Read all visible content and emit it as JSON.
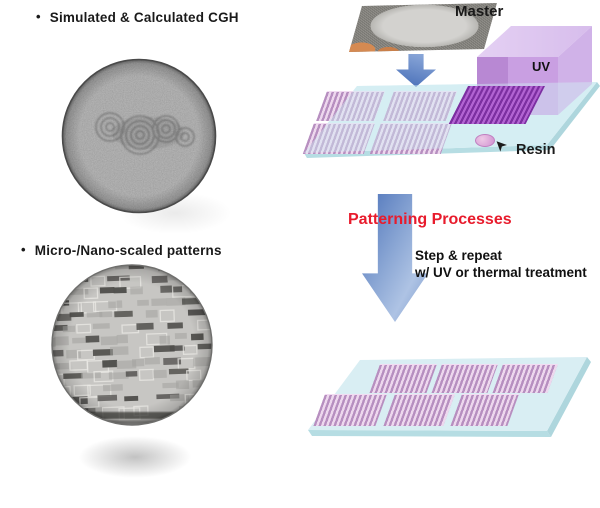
{
  "figure": {
    "left": {
      "items": [
        {
          "bullet": "•",
          "label": "Simulated & Calculated CGH"
        },
        {
          "bullet": "•",
          "label": "Micro-/Nano-scaled patterns"
        }
      ]
    },
    "process": {
      "master_label": "Master",
      "uv_label": "UV",
      "resin_label": "Resin",
      "patterning_title": "Patterning Processes",
      "step_note": [
        "Step & repeat",
        "w/ UV or thermal treatment"
      ]
    },
    "icons": {
      "master_down_arrow": "down-arrow",
      "process_down_arrow": "down-arrow",
      "resin_pointer": "➤"
    },
    "colors": {
      "patterning_red": "#e81b2c",
      "substrate": "#d9eef3",
      "substrate_edge": "#aed6dd",
      "stripe_dark": "#b78fc0",
      "stripe_light": "#eed8ee",
      "stamp_dark": "#7c2fa1",
      "stamp_light": "#b263d2",
      "cube_front": "#c99fe2",
      "cube_front_shade": "#b888d3",
      "cube_top": "#d7bdec",
      "cube_side": "#d0b2e8",
      "arrow_dark": "#4d73ba",
      "arrow_light": "#aec3e4"
    }
  }
}
